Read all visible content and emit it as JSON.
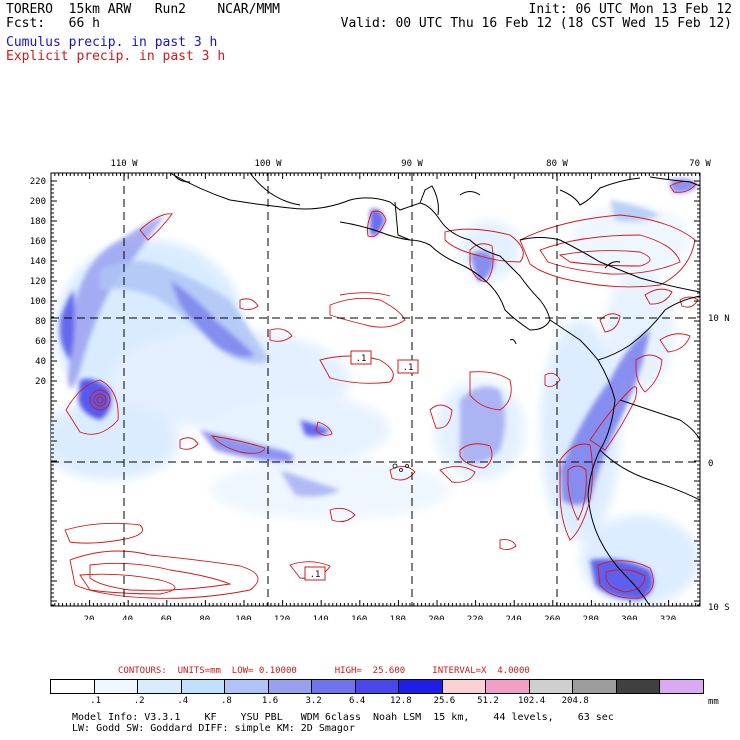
{
  "header": {
    "title_line1": "TORERO  15km ARW   Run2    NCAR/MMM",
    "title_line2": "Fcst:   66 h",
    "init_line": "Init: 06 UTC Mon 13 Feb 12",
    "valid_line": "Valid: 00 UTC Thu 16 Feb 12 (18 CST Wed 15 Feb 12)"
  },
  "legend": {
    "cumulus": "Cumulus precip. in past 3 h",
    "explicit": "Explicit precip. in past 3 h"
  },
  "map": {
    "top_lon_labels": [
      "110 W",
      "100 W",
      "90 W",
      "80 W",
      "70 W"
    ],
    "right_lat_labels": [
      "10 N",
      "0",
      "10 S"
    ],
    "left_axis_ticks": [
      "220",
      "200",
      "180",
      "160",
      "140",
      "120",
      "100",
      "80",
      "60",
      "40",
      "20"
    ],
    "bottom_axis_ticks": [
      "20",
      "40",
      "60",
      "80",
      "100",
      "120",
      "140",
      "160",
      "180",
      "200",
      "220",
      "240",
      "260",
      "280",
      "300",
      "320"
    ],
    "contour_labels": [
      ".1",
      ".1",
      ".1"
    ],
    "colors": {
      "cumulus": "#1515c8",
      "explicit": "#d21818",
      "coast": "#000000"
    }
  },
  "contour_info": "CONTOURS:  UNITS=mm  LOW= 0.10000       HIGH=  25.600     INTERVAL=X  4.0000",
  "colorbar": {
    "colors": [
      "#ffffff",
      "#eef6ff",
      "#d8ebff",
      "#bfe1ff",
      "#aec4f6",
      "#9aa0f0",
      "#6f74ec",
      "#4848ea",
      "#1e1ee8",
      "#fad2d6",
      "#f0a0c4",
      "#cfcfcf",
      "#9d9d9d",
      "#404040",
      "#d9aaf2"
    ],
    "ticks": [
      ".1",
      ".2",
      ".4",
      ".8",
      "1.6",
      "3.2",
      "6.4",
      "12.8",
      "25.6",
      "51.2",
      "102.4",
      "204.8"
    ],
    "unit": "mm"
  },
  "model_info": {
    "line1": "Model Info: V3.3.1    KF    YSU PBL   WDM 6class  Noah LSM  15 km,    44 levels,    63 sec",
    "line2": "LW: Godd SW: Goddard DIFF: simple KM: 2D Smagor"
  }
}
